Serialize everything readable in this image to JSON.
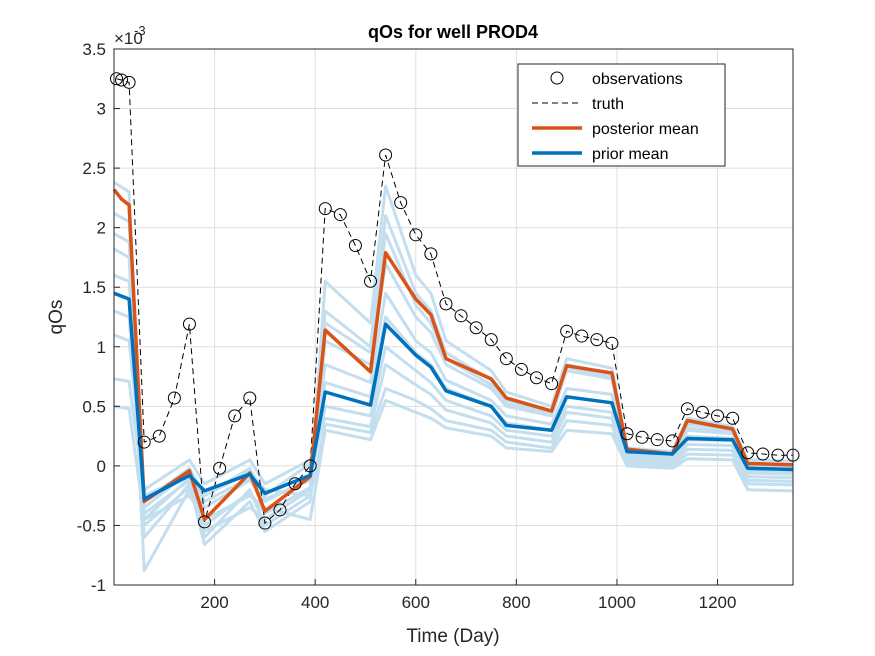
{
  "chart_data": {
    "type": "line",
    "title": "qOs for well PROD4",
    "xlabel": "Time (Day)",
    "ylabel": "qOs",
    "y_multiplier_label": "×10",
    "y_multiplier_exponent": "-3",
    "xlim": [
      0,
      1350
    ],
    "ylim": [
      -1,
      3.5
    ],
    "x_ticks": [
      200,
      400,
      600,
      800,
      1000,
      1200
    ],
    "x_tick_labels": [
      "200",
      "400",
      "600",
      "800",
      "1000",
      "1200"
    ],
    "y_ticks": [
      -1,
      -0.5,
      0,
      0.5,
      1,
      1.5,
      2,
      2.5,
      3,
      3.5
    ],
    "y_tick_labels": [
      "-1",
      "-0.5",
      "0",
      "0.5",
      "1",
      "1.5",
      "2",
      "2.5",
      "3",
      "3.5"
    ],
    "grid": true,
    "legend_position": "top-right",
    "legend": [
      {
        "label": "observations",
        "style": "marker-circle",
        "color": "#000000"
      },
      {
        "label": "truth",
        "style": "dashed",
        "color": "#000000"
      },
      {
        "label": "posterior mean",
        "style": "solid-thick",
        "color": "#D95319"
      },
      {
        "label": "prior mean",
        "style": "solid-thick",
        "color": "#0072BD"
      }
    ],
    "ensemble_color": "#C3DEEF",
    "series": [
      {
        "name": "observations",
        "style": "markers",
        "color": "#000000",
        "x": [
          5,
          15,
          30,
          60,
          90,
          120,
          150,
          180,
          210,
          240,
          270,
          300,
          330,
          360,
          390,
          420,
          450,
          480,
          510,
          540,
          570,
          600,
          630,
          660,
          690,
          720,
          750,
          780,
          810,
          840,
          870,
          900,
          930,
          960,
          990,
          1020,
          1050,
          1080,
          1110,
          1140,
          1170,
          1200,
          1230,
          1260,
          1290,
          1320,
          1350
        ],
        "values": [
          3.25,
          3.24,
          3.22,
          0.2,
          0.25,
          0.57,
          1.19,
          -0.47,
          -0.02,
          0.42,
          0.57,
          -0.48,
          -0.37,
          -0.15,
          0.0,
          2.16,
          2.11,
          1.85,
          1.55,
          2.61,
          2.21,
          1.94,
          1.78,
          1.36,
          1.26,
          1.16,
          1.06,
          0.9,
          0.81,
          0.74,
          0.69,
          1.13,
          1.09,
          1.06,
          1.03,
          0.27,
          0.24,
          0.22,
          0.21,
          0.48,
          0.45,
          0.42,
          0.4,
          0.11,
          0.1,
          0.09,
          0.09
        ]
      },
      {
        "name": "truth",
        "style": "dashed",
        "color": "#000000",
        "x": [
          5,
          15,
          30,
          60,
          90,
          120,
          150,
          180,
          210,
          240,
          270,
          300,
          330,
          360,
          390,
          420,
          450,
          480,
          510,
          540,
          570,
          600,
          630,
          660,
          690,
          720,
          750,
          780,
          810,
          840,
          870,
          900,
          930,
          960,
          990,
          1020,
          1050,
          1080,
          1110,
          1140,
          1170,
          1200,
          1230,
          1260,
          1290,
          1320,
          1350
        ],
        "values": [
          3.25,
          3.24,
          3.22,
          0.2,
          0.25,
          0.57,
          1.19,
          -0.47,
          -0.02,
          0.42,
          0.57,
          -0.48,
          -0.37,
          -0.15,
          0.0,
          2.16,
          2.11,
          1.85,
          1.55,
          2.61,
          2.21,
          1.94,
          1.78,
          1.36,
          1.26,
          1.16,
          1.06,
          0.9,
          0.81,
          0.74,
          0.69,
          1.13,
          1.09,
          1.06,
          1.03,
          0.27,
          0.24,
          0.22,
          0.21,
          0.48,
          0.45,
          0.42,
          0.4,
          0.11,
          0.1,
          0.09,
          0.09
        ]
      },
      {
        "name": "posterior mean",
        "style": "solid",
        "color": "#D95319",
        "x": [
          0,
          15,
          30,
          60,
          150,
          180,
          270,
          300,
          390,
          420,
          510,
          540,
          600,
          630,
          660,
          750,
          780,
          870,
          900,
          990,
          1020,
          1110,
          1140,
          1230,
          1260,
          1350
        ],
        "values": [
          2.32,
          2.24,
          2.19,
          -0.3,
          -0.04,
          -0.45,
          -0.06,
          -0.38,
          -0.09,
          1.14,
          0.79,
          1.79,
          1.4,
          1.27,
          0.9,
          0.73,
          0.57,
          0.46,
          0.84,
          0.78,
          0.14,
          0.1,
          0.38,
          0.31,
          0.02,
          0.01
        ]
      },
      {
        "name": "prior mean",
        "style": "solid",
        "color": "#0072BD",
        "x": [
          0,
          30,
          60,
          150,
          180,
          270,
          300,
          390,
          420,
          510,
          540,
          600,
          630,
          660,
          750,
          780,
          870,
          900,
          990,
          1020,
          1110,
          1140,
          1230,
          1260,
          1350
        ],
        "values": [
          1.45,
          1.4,
          -0.28,
          -0.08,
          -0.21,
          -0.07,
          -0.23,
          -0.08,
          0.62,
          0.51,
          1.19,
          0.93,
          0.83,
          0.63,
          0.5,
          0.34,
          0.3,
          0.58,
          0.53,
          0.12,
          0.1,
          0.23,
          0.22,
          -0.02,
          -0.03
        ]
      }
    ],
    "ensemble": [
      {
        "x": [
          0,
          30,
          60,
          150,
          180,
          270,
          300,
          390,
          420,
          510,
          540,
          600,
          630,
          660,
          750,
          780,
          870,
          900,
          990,
          1020,
          1110,
          1140,
          1230,
          1260,
          1350
        ],
        "values": [
          2.38,
          2.3,
          -0.45,
          -0.1,
          -0.6,
          -0.2,
          -0.5,
          -0.25,
          1.55,
          1.2,
          2.35,
          1.6,
          1.45,
          1.05,
          0.8,
          0.62,
          0.5,
          0.9,
          0.82,
          0.15,
          0.12,
          0.4,
          0.33,
          0.05,
          0.04
        ]
      },
      {
        "x": [
          0,
          30,
          60,
          150,
          180,
          270,
          300,
          390,
          420,
          510,
          540,
          600,
          630,
          660,
          750,
          780,
          870,
          900,
          990,
          1020,
          1110,
          1140,
          1230,
          1260,
          1350
        ],
        "values": [
          2.12,
          2.05,
          -0.6,
          -0.15,
          -0.66,
          -0.3,
          -0.55,
          -0.3,
          1.3,
          1.0,
          2.1,
          1.45,
          1.3,
          0.95,
          0.72,
          0.55,
          0.45,
          0.85,
          0.77,
          0.12,
          0.1,
          0.35,
          0.3,
          0.02,
          0.01
        ]
      },
      {
        "x": [
          0,
          30,
          60,
          150,
          180,
          270,
          300,
          390,
          420,
          510,
          540,
          600,
          630,
          660,
          750,
          780,
          870,
          900,
          990,
          1020,
          1110,
          1140,
          1230,
          1260,
          1350
        ],
        "values": [
          1.82,
          1.75,
          -0.88,
          -0.2,
          -0.55,
          -0.35,
          -0.45,
          -0.2,
          1.05,
          0.85,
          1.7,
          1.25,
          1.12,
          0.85,
          0.65,
          0.5,
          0.42,
          0.8,
          0.73,
          0.1,
          0.08,
          0.3,
          0.27,
          -0.03,
          -0.04
        ]
      },
      {
        "x": [
          0,
          30,
          60,
          150,
          180,
          270,
          300,
          390,
          420,
          510,
          540,
          600,
          630,
          660,
          750,
          780,
          870,
          900,
          990,
          1020,
          1110,
          1140,
          1230,
          1260,
          1350
        ],
        "values": [
          1.6,
          1.55,
          -0.35,
          -0.05,
          -0.3,
          -0.1,
          -0.3,
          -0.1,
          0.85,
          0.7,
          1.45,
          1.05,
          0.95,
          0.72,
          0.55,
          0.42,
          0.35,
          0.65,
          0.6,
          0.08,
          0.06,
          0.25,
          0.23,
          -0.06,
          -0.07
        ]
      },
      {
        "x": [
          0,
          30,
          60,
          150,
          180,
          270,
          300,
          390,
          420,
          510,
          540,
          600,
          630,
          660,
          750,
          780,
          870,
          900,
          990,
          1020,
          1110,
          1140,
          1230,
          1260,
          1350
        ],
        "values": [
          1.3,
          1.25,
          -0.4,
          -0.12,
          -0.35,
          -0.12,
          -0.28,
          -0.12,
          0.5,
          0.42,
          1.0,
          0.8,
          0.7,
          0.55,
          0.42,
          0.3,
          0.25,
          0.5,
          0.45,
          0.06,
          0.04,
          0.18,
          0.17,
          -0.09,
          -0.1
        ]
      },
      {
        "x": [
          0,
          30,
          60,
          150,
          180,
          270,
          300,
          390,
          420,
          510,
          540,
          600,
          630,
          660,
          750,
          780,
          870,
          900,
          990,
          1020,
          1110,
          1140,
          1230,
          1260,
          1350
        ],
        "values": [
          1.1,
          1.05,
          -0.2,
          0.05,
          -0.15,
          0.05,
          -0.15,
          0.05,
          0.4,
          0.33,
          0.85,
          0.68,
          0.6,
          0.47,
          0.36,
          0.25,
          0.2,
          0.45,
          0.4,
          0.04,
          0.02,
          0.14,
          0.13,
          -0.12,
          -0.13
        ]
      },
      {
        "x": [
          0,
          30,
          60,
          150,
          180,
          270,
          300,
          390,
          420,
          510,
          540,
          600,
          630,
          660,
          750,
          780,
          870,
          900,
          990,
          1020,
          1110,
          1140,
          1230,
          1260,
          1350
        ],
        "values": [
          0.73,
          0.71,
          -0.25,
          -0.08,
          -0.25,
          -0.05,
          -0.2,
          -0.25,
          0.35,
          0.28,
          0.65,
          0.55,
          0.48,
          0.38,
          0.3,
          0.2,
          0.15,
          0.38,
          0.34,
          0.02,
          0.0,
          0.1,
          0.09,
          -0.15,
          -0.16
        ]
      },
      {
        "x": [
          0,
          30,
          60,
          150,
          180,
          270,
          300,
          390,
          420,
          510,
          540,
          600,
          630,
          660,
          750,
          780,
          870,
          900,
          990,
          1020,
          1110,
          1140,
          1230,
          1260,
          1350
        ],
        "values": [
          0.5,
          0.48,
          -0.45,
          -0.25,
          -0.45,
          -0.25,
          -0.35,
          -0.45,
          0.3,
          0.22,
          0.55,
          0.45,
          0.4,
          0.32,
          0.25,
          0.15,
          0.12,
          0.3,
          0.27,
          0.0,
          -0.02,
          0.06,
          0.05,
          -0.2,
          -0.21
        ]
      },
      {
        "x": [
          0,
          30,
          60,
          150,
          180,
          270,
          300,
          390,
          420,
          510,
          540,
          600,
          630,
          660,
          750,
          780,
          870,
          900,
          990,
          1020,
          1110,
          1140,
          1230,
          1260,
          1350
        ],
        "values": [
          1.95,
          1.88,
          -0.5,
          -0.18,
          -0.5,
          -0.22,
          -0.4,
          -0.18,
          1.2,
          0.95,
          1.95,
          1.35,
          1.2,
          0.9,
          0.68,
          0.52,
          0.44,
          0.83,
          0.75,
          0.11,
          0.09,
          0.32,
          0.28,
          0.0,
          -0.01
        ]
      },
      {
        "x": [
          0,
          30,
          60,
          150,
          180,
          270,
          300,
          390,
          420,
          510,
          540,
          600,
          630,
          660,
          750,
          780,
          870,
          900,
          990,
          1020,
          1110,
          1140,
          1230,
          1260,
          1350
        ],
        "values": [
          1.45,
          1.4,
          -0.3,
          -0.02,
          -0.25,
          -0.02,
          -0.25,
          0.02,
          0.7,
          0.58,
          1.25,
          0.95,
          0.85,
          0.65,
          0.5,
          0.36,
          0.3,
          0.58,
          0.53,
          0.1,
          0.08,
          0.22,
          0.21,
          -0.04,
          -0.05
        ]
      }
    ]
  }
}
